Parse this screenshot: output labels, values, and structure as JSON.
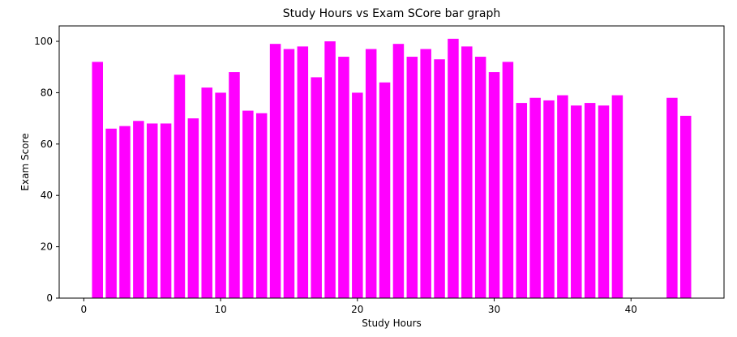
{
  "chart_data": {
    "type": "bar",
    "title": "Study Hours vs Exam SCore bar graph",
    "xlabel": "Study Hours",
    "ylabel": "Exam Score",
    "x": [
      1,
      2,
      3,
      4,
      5,
      6,
      7,
      8,
      9,
      10,
      11,
      12,
      13,
      14,
      15,
      16,
      17,
      18,
      19,
      20,
      21,
      22,
      23,
      24,
      25,
      26,
      27,
      28,
      29,
      30,
      31,
      32,
      33,
      34,
      35,
      36,
      37,
      38,
      39,
      43,
      44
    ],
    "values": [
      92,
      66,
      67,
      69,
      68,
      68,
      87,
      70,
      82,
      80,
      88,
      73,
      72,
      99,
      97,
      98,
      86,
      100,
      94,
      80,
      97,
      84,
      99,
      94,
      97,
      93,
      101,
      98,
      94,
      88,
      92,
      76,
      78,
      77,
      79,
      75,
      76,
      75,
      79,
      78,
      71
    ],
    "xlim": [
      -1.8,
      46.8
    ],
    "ylim": [
      0,
      106
    ],
    "xticks": [
      "0",
      "10",
      "20",
      "30",
      "40"
    ],
    "yticks": [
      "0",
      "20",
      "40",
      "60",
      "80",
      "100"
    ],
    "grid": false,
    "bar_color": "#ff00ff"
  }
}
